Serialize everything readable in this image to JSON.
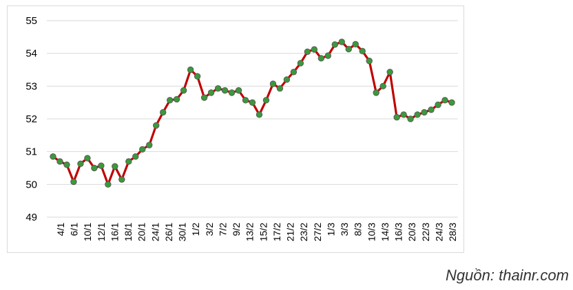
{
  "chart_data": {
    "type": "line",
    "title": "",
    "xlabel": "",
    "ylabel": "",
    "ylim": [
      49,
      55
    ],
    "yticks": [
      49,
      50,
      51,
      52,
      53,
      54,
      55
    ],
    "grid": true,
    "legend": "none",
    "line_color": "#c00000",
    "marker_fill": "#3a9a3a",
    "marker_stroke": "#5a5a5a",
    "x_tick_labels": [
      "4/1",
      "6/1",
      "10/1",
      "12/1",
      "16/1",
      "18/1",
      "20/1",
      "24/1",
      "26/1",
      "30/1",
      "1/2",
      "3/2",
      "7/2",
      "9/2",
      "13/2",
      "15/2",
      "17/2",
      "21/2",
      "23/2",
      "27/2",
      "1/3",
      "3/3",
      "8/3",
      "10/3",
      "14/3",
      "16/3",
      "20/3",
      "22/3",
      "24/3",
      "28/3"
    ],
    "values": [
      50.85,
      50.7,
      50.6,
      50.08,
      50.63,
      50.8,
      50.5,
      50.57,
      50.0,
      50.55,
      50.15,
      50.7,
      50.85,
      51.07,
      51.2,
      51.8,
      52.2,
      52.57,
      52.6,
      52.87,
      53.5,
      53.3,
      52.65,
      52.8,
      52.93,
      52.87,
      52.8,
      52.87,
      52.57,
      52.5,
      52.13,
      52.57,
      53.07,
      52.93,
      53.2,
      53.43,
      53.7,
      54.05,
      54.12,
      53.85,
      53.93,
      54.27,
      54.35,
      54.13,
      54.28,
      54.07,
      53.77,
      52.8,
      53.0,
      53.43,
      52.05,
      52.13,
      52.0,
      52.13,
      52.2,
      52.28,
      52.43,
      52.57,
      52.5
    ]
  },
  "source_note": "Nguồn: thainr.com"
}
